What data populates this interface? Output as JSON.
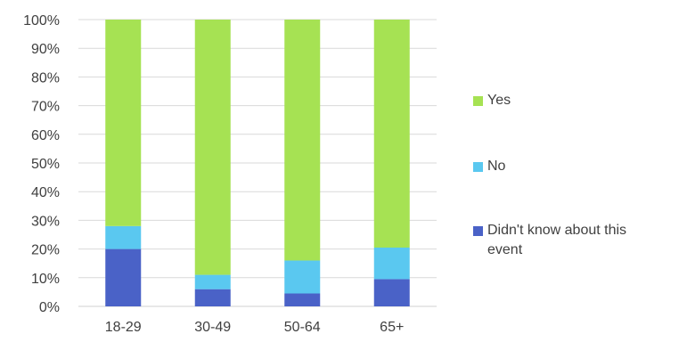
{
  "chart_data": {
    "type": "bar",
    "stacked": true,
    "percent": true,
    "categories": [
      "18-29",
      "30-49",
      "50-64",
      "65+"
    ],
    "series": [
      {
        "name": "Didn't know about this event",
        "values": [
          20,
          6,
          4.5,
          9.5
        ],
        "color": "#4a62c7"
      },
      {
        "name": "No",
        "values": [
          8,
          5,
          11.5,
          11
        ],
        "color": "#5ac8f0"
      },
      {
        "name": "Yes",
        "values": [
          72,
          89,
          84,
          79.5
        ],
        "color": "#a6e253"
      }
    ],
    "ylim": [
      0,
      100
    ],
    "yticks": [
      "0%",
      "10%",
      "20%",
      "30%",
      "40%",
      "50%",
      "60%",
      "70%",
      "80%",
      "90%",
      "100%"
    ],
    "grid": true,
    "legend_position": "right",
    "legend_order": [
      "Yes",
      "No",
      "Didn't know about this event"
    ]
  }
}
